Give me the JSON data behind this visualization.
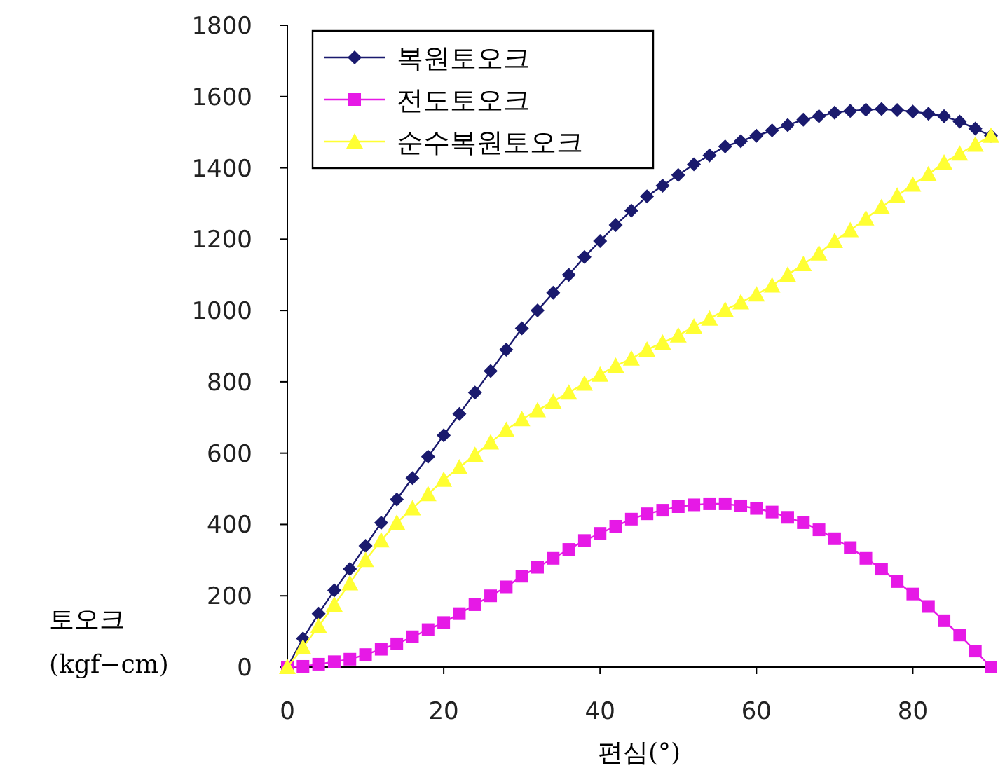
{
  "chart_data": {
    "type": "line",
    "xlabel": "편심(°)",
    "ylabel": "토오크 (kgf−cm)",
    "x": [
      0,
      2,
      4,
      6,
      8,
      10,
      12,
      14,
      16,
      18,
      20,
      22,
      24,
      26,
      28,
      30,
      32,
      34,
      36,
      38,
      40,
      42,
      44,
      46,
      48,
      50,
      52,
      54,
      56,
      58,
      60,
      62,
      64,
      66,
      68,
      70,
      72,
      74,
      76,
      78,
      80,
      82,
      84,
      86,
      88,
      90
    ],
    "xlim": [
      0,
      90
    ],
    "xticks": [
      0,
      20,
      40,
      60,
      80
    ],
    "ylim": [
      0,
      1800
    ],
    "yticks": [
      0,
      200,
      400,
      600,
      800,
      1000,
      1200,
      1400,
      1600,
      1800
    ],
    "legend": "top left",
    "grid": false,
    "series": [
      {
        "name": "복원토오크",
        "color": "#1a1a6e",
        "marker": "diamond",
        "values": [
          0,
          80,
          150,
          215,
          275,
          340,
          405,
          470,
          530,
          590,
          650,
          710,
          770,
          830,
          890,
          950,
          1000,
          1050,
          1100,
          1150,
          1195,
          1240,
          1280,
          1320,
          1350,
          1380,
          1410,
          1435,
          1460,
          1475,
          1490,
          1505,
          1520,
          1535,
          1545,
          1555,
          1560,
          1563,
          1565,
          1562,
          1558,
          1552,
          1545,
          1530,
          1510,
          1490
        ]
      },
      {
        "name": "전도토오크",
        "color": "#e619e6",
        "marker": "square",
        "values": [
          0,
          2,
          8,
          15,
          22,
          35,
          50,
          65,
          85,
          105,
          125,
          150,
          175,
          200,
          225,
          255,
          280,
          305,
          330,
          355,
          375,
          395,
          415,
          430,
          440,
          450,
          455,
          458,
          458,
          452,
          445,
          435,
          420,
          405,
          385,
          360,
          335,
          305,
          275,
          240,
          205,
          170,
          130,
          90,
          45,
          0
        ]
      },
      {
        "name": "순수복원토오크",
        "color": "#ffff33",
        "marker": "triangle",
        "values": [
          0,
          55,
          115,
          175,
          235,
          300,
          355,
          405,
          445,
          485,
          525,
          560,
          595,
          630,
          665,
          695,
          720,
          745,
          770,
          795,
          820,
          845,
          865,
          890,
          910,
          930,
          955,
          977,
          1002,
          1023,
          1045,
          1070,
          1100,
          1130,
          1160,
          1195,
          1225,
          1258,
          1290,
          1322,
          1353,
          1382,
          1415,
          1440,
          1465,
          1490
        ]
      }
    ]
  }
}
